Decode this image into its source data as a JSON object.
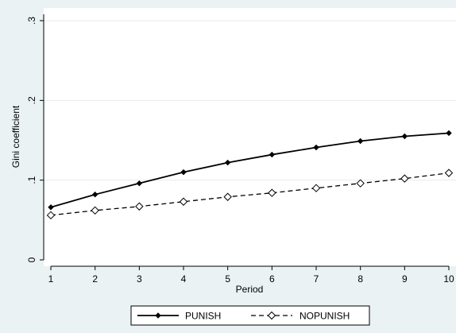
{
  "chart_data": {
    "type": "line",
    "xlabel": "Period",
    "ylabel": "Gini coefficient",
    "xlim": [
      1,
      10
    ],
    "ylim": [
      0,
      0.3
    ],
    "x": [
      1,
      2,
      3,
      4,
      5,
      6,
      7,
      8,
      9,
      10
    ],
    "x_ticks": [
      "1",
      "2",
      "3",
      "4",
      "5",
      "6",
      "7",
      "8",
      "9",
      "10"
    ],
    "y_ticks": [
      {
        "value": 0,
        "label": "0"
      },
      {
        "value": 0.1,
        "label": ".1"
      },
      {
        "value": 0.2,
        "label": ".2"
      },
      {
        "value": 0.3,
        "label": ".3"
      }
    ],
    "grid": "horizontal",
    "legend_position": "bottom",
    "series": [
      {
        "name": "PUNISH",
        "values": [
          0.066,
          0.082,
          0.096,
          0.11,
          0.122,
          0.132,
          0.141,
          0.149,
          0.155,
          0.159
        ],
        "color": "#000000",
        "style": "solid",
        "marker": "filled-diamond"
      },
      {
        "name": "NOPUNISH",
        "values": [
          0.056,
          0.062,
          0.067,
          0.073,
          0.079,
          0.084,
          0.09,
          0.096,
          0.102,
          0.109
        ],
        "color": "#000000",
        "style": "dashed",
        "marker": "hollow-diamond"
      }
    ]
  }
}
